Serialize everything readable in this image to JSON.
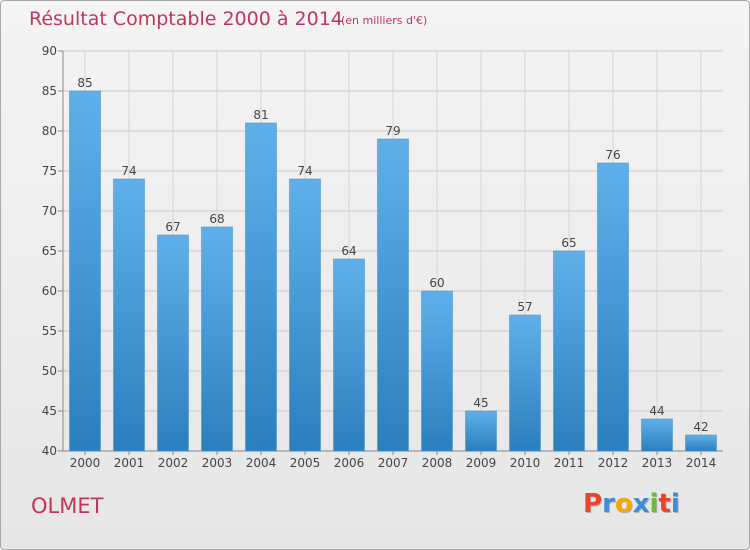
{
  "header": {
    "title": "Résultat Comptable 2000 à 2014",
    "subtitle": "(en milliers d'€)"
  },
  "footer": {
    "commune": "OLMET",
    "logo_text": "Proxiti",
    "logo_colors": [
      "#e8452c",
      "#3a8fd6",
      "#f2a900",
      "#3a8fd6",
      "#6fb83a",
      "#e8452c",
      "#3a8fd6"
    ]
  },
  "colors": {
    "title": "#c0365b",
    "bar_top": "#5fb0ea",
    "bar_bottom": "#2c7fbd"
  },
  "chart_data": {
    "type": "bar",
    "categories": [
      "2000",
      "2001",
      "2002",
      "2003",
      "2004",
      "2005",
      "2006",
      "2007",
      "2008",
      "2009",
      "2010",
      "2011",
      "2012",
      "2013",
      "2014"
    ],
    "values": [
      85,
      74,
      67,
      68,
      81,
      74,
      64,
      79,
      60,
      45,
      57,
      65,
      76,
      44,
      42
    ],
    "ylim": [
      40,
      90
    ],
    "yticks": [
      40,
      45,
      50,
      55,
      60,
      65,
      70,
      75,
      80,
      85,
      90
    ],
    "grid": true,
    "data_labels": true
  }
}
